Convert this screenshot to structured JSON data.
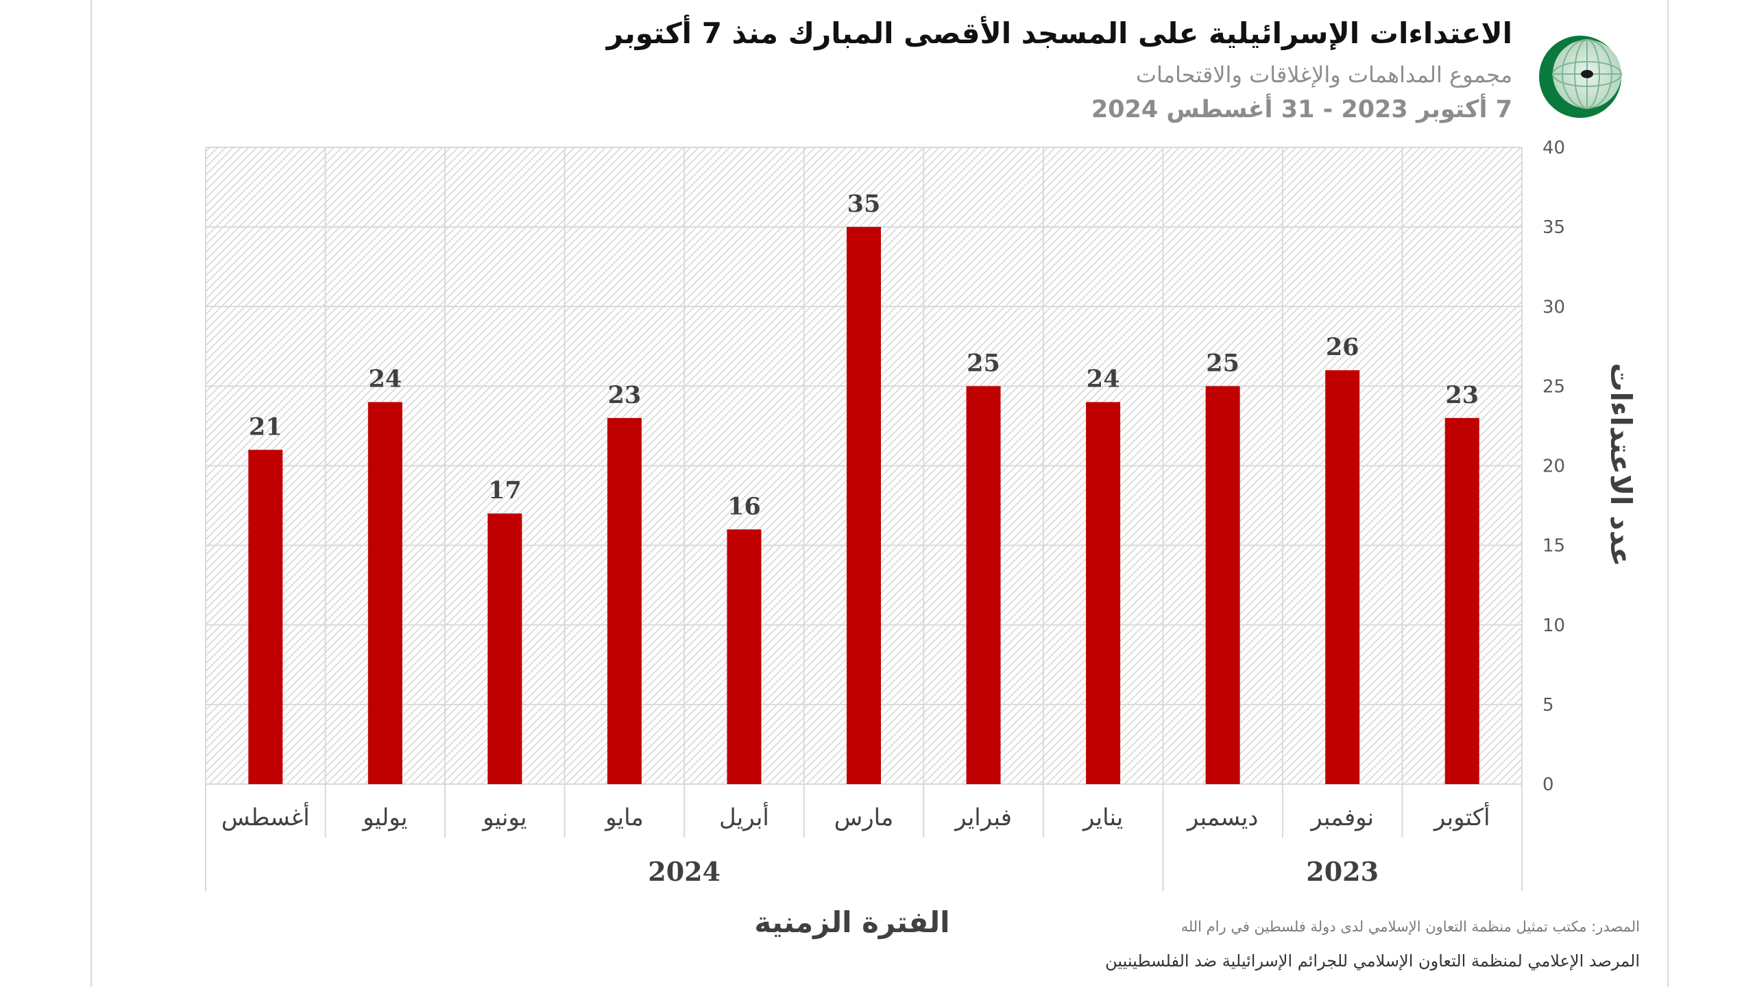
{
  "header": {
    "title": "الاعتداءات الإسرائيلية على المسجد الأقصى المبارك منذ 7 أكتوبر",
    "subtitle": "مجموع المداهمات والإغلاقات والاقتحامات",
    "date_range": "7 أكتوبر 2023 - 31 أغسطس 2024"
  },
  "footer": {
    "source": "المصدر: مكتب تمثيل منظمة التعاون الإسلامي لدى دولة فلسطين في رام الله",
    "observatory": "المرصد الإعلامي لمنظمة التعاون الإسلامي للجرائم الإسرائيلية ضد الفلسطينيين"
  },
  "logo": {
    "icon": "oic-crescent-globe-icon",
    "colors": [
      "#0a7a3c",
      "#ffffff"
    ]
  },
  "chart_data": {
    "type": "bar",
    "title": "الاعتداءات الإسرائيلية على المسجد الأقصى المبارك منذ 7 أكتوبر",
    "xlabel": "الفترة الزمنية",
    "ylabel": "عدد الاعتداءات",
    "direction": "rtl",
    "categories": [
      "أكتوبر",
      "نوفمبر",
      "ديسمبر",
      "يناير",
      "فبراير",
      "مارس",
      "أبريل",
      "مايو",
      "يونيو",
      "يوليو",
      "أغسطس"
    ],
    "values": [
      23,
      26,
      25,
      24,
      25,
      35,
      16,
      23,
      17,
      24,
      21
    ],
    "year_groups": [
      {
        "label": "2023",
        "categories": [
          "أكتوبر",
          "نوفمبر",
          "ديسمبر"
        ]
      },
      {
        "label": "2024",
        "categories": [
          "يناير",
          "فبراير",
          "مارس",
          "أبريل",
          "مايو",
          "يونيو",
          "يوليو",
          "أغسطس"
        ]
      }
    ],
    "ylim": [
      0,
      40
    ],
    "yticks": [
      0,
      5,
      10,
      15,
      20,
      25,
      30,
      35,
      40
    ],
    "y_axis_position": "right",
    "bar_color": "#c00000",
    "grid": true,
    "plot_background": "diagonal-hatch",
    "data_labels": true,
    "legend": "none"
  }
}
